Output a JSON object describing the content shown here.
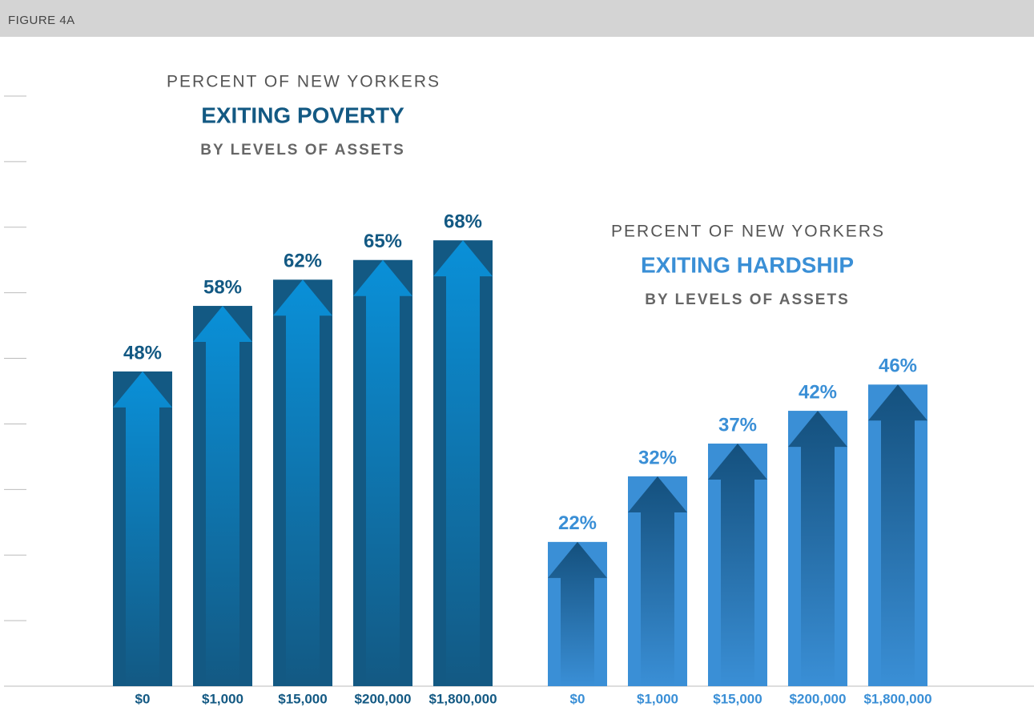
{
  "header": {
    "label": "FIGURE 4A"
  },
  "chart_data": [
    {
      "type": "bar",
      "title_top": "PERCENT OF NEW YORKERS",
      "title": "EXITING POVERTY",
      "subtitle": "BY LEVELS OF ASSETS",
      "categories": [
        "$0",
        "$1,000",
        "$15,000",
        "$200,000",
        "$1,800,000"
      ],
      "values": [
        48,
        58,
        62,
        65,
        68
      ],
      "value_labels": [
        "48%",
        "58%",
        "62%",
        "65%",
        "68%"
      ],
      "color": "#135983",
      "arrow_color": "#0a90d8",
      "ylim": [
        0,
        90
      ],
      "yticks": [
        0,
        10,
        20,
        30,
        40,
        50,
        60,
        70,
        80,
        90
      ]
    },
    {
      "type": "bar",
      "title_top": "PERCENT OF NEW YORKERS",
      "title": "EXITING HARDSHIP",
      "subtitle": "BY LEVELS OF ASSETS",
      "categories": [
        "$0",
        "$1,000",
        "$15,000",
        "$200,000",
        "$1,800,000"
      ],
      "values": [
        22,
        32,
        37,
        42,
        46
      ],
      "value_labels": [
        "22%",
        "32%",
        "37%",
        "42%",
        "46%"
      ],
      "color": "#3a8fd6",
      "arrow_color": "#14507d",
      "ylim": [
        0,
        90
      ]
    }
  ]
}
